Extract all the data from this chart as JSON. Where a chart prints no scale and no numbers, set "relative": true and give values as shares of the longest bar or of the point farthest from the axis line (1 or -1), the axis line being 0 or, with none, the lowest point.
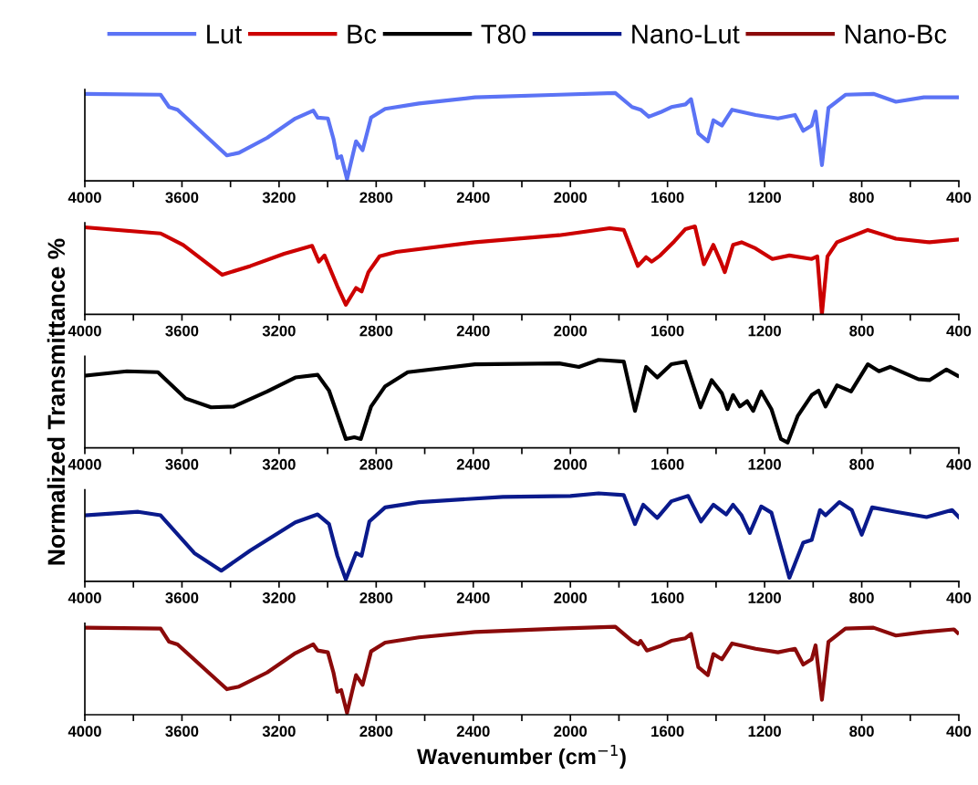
{
  "chart_data": [
    {
      "type": "line",
      "relative": true,
      "legend": "top",
      "tick_labels": "x",
      "xlim": [
        4000,
        400
      ],
      "xticks": [
        4000,
        {
          "value": 3800,
          "label": null
        },
        3600,
        {
          "value": 3400,
          "label": null
        },
        3200,
        {
          "value": 3000,
          "label": null
        },
        2800,
        {
          "value": 2600,
          "label": null
        },
        2400,
        {
          "value": 2200,
          "label": null
        },
        2000,
        {
          "value": 1800,
          "label": null
        },
        1600,
        {
          "value": 1400,
          "label": null
        },
        1200,
        {
          "value": 1000,
          "label": null
        },
        800,
        {
          "value": 600,
          "label": null
        },
        400
      ],
      "series": [
        {
          "name": "Lut",
          "color": "#5b73f5",
          "x": [
            4000,
            3688,
            3653,
            3618,
            3415,
            3365,
            3249,
            3133,
            3059,
            3041,
            2999,
            2976,
            2960,
            2944,
            2920,
            2883,
            2856,
            2821,
            2763,
            2624,
            2393,
            2046,
            1815,
            1746,
            1711,
            1677,
            1630,
            1584,
            1526,
            1503,
            1473,
            1434,
            1411,
            1376,
            1334,
            1237,
            1145,
            1075,
            1041,
            1006,
            990,
            964,
            937,
            867,
            752,
            659,
            544,
            405
          ],
          "values": [
            0.99,
            0.98,
            0.84,
            0.81,
            0.29,
            0.32,
            0.49,
            0.71,
            0.8,
            0.72,
            0.71,
            0.48,
            0.26,
            0.28,
            0.02,
            0.45,
            0.35,
            0.72,
            0.82,
            0.88,
            0.95,
            0.98,
            1.0,
            0.84,
            0.81,
            0.73,
            0.78,
            0.84,
            0.87,
            0.93,
            0.54,
            0.45,
            0.69,
            0.63,
            0.81,
            0.75,
            0.71,
            0.75,
            0.57,
            0.63,
            0.79,
            0.18,
            0.83,
            0.98,
            0.99,
            0.9,
            0.95,
            0.95
          ]
        }
      ]
    },
    {
      "type": "line",
      "relative": true,
      "legend": "top",
      "tick_labels": "x",
      "xlim": [
        4000,
        400
      ],
      "xticks": [
        4000,
        {
          "value": 3800,
          "label": null
        },
        3600,
        {
          "value": 3400,
          "label": null
        },
        3200,
        {
          "value": 3000,
          "label": null
        },
        2800,
        {
          "value": 2600,
          "label": null
        },
        2400,
        {
          "value": 2200,
          "label": null
        },
        2000,
        {
          "value": 1800,
          "label": null
        },
        1600,
        {
          "value": 1400,
          "label": null
        },
        1200,
        {
          "value": 1000,
          "label": null
        },
        800,
        {
          "value": 600,
          "label": null
        },
        400
      ],
      "series": [
        {
          "name": "Bc",
          "color": "#cc0000",
          "x": [
            4000,
            3688,
            3595,
            3434,
            3318,
            3179,
            3064,
            3036,
            3013,
            2960,
            2925,
            2883,
            2860,
            2832,
            2786,
            2717,
            2393,
            2046,
            1838,
            1780,
            1722,
            1688,
            1665,
            1630,
            1572,
            1526,
            1487,
            1450,
            1411,
            1381,
            1364,
            1330,
            1295,
            1237,
            1168,
            1098,
            1006,
            983,
            964,
            941,
            902,
            775,
            659,
            521,
            405
          ],
          "values": [
            0.99,
            0.92,
            0.79,
            0.45,
            0.55,
            0.69,
            0.78,
            0.6,
            0.67,
            0.32,
            0.11,
            0.3,
            0.26,
            0.48,
            0.66,
            0.71,
            0.82,
            0.9,
            0.98,
            0.96,
            0.55,
            0.65,
            0.6,
            0.67,
            0.83,
            0.97,
            1.0,
            0.57,
            0.79,
            0.6,
            0.48,
            0.79,
            0.82,
            0.75,
            0.63,
            0.67,
            0.63,
            0.66,
            0.0,
            0.66,
            0.82,
            0.96,
            0.86,
            0.82,
            0.85
          ]
        }
      ]
    },
    {
      "type": "line",
      "relative": true,
      "legend": "top",
      "tick_labels": "x",
      "ylabel": "Normalized Transmittance %",
      "xlim": [
        4000,
        400
      ],
      "xticks": [
        4000,
        {
          "value": 3800,
          "label": null
        },
        3600,
        {
          "value": 3400,
          "label": null
        },
        3200,
        {
          "value": 3000,
          "label": null
        },
        2800,
        {
          "value": 2600,
          "label": null
        },
        2400,
        {
          "value": 2200,
          "label": null
        },
        2000,
        {
          "value": 1800,
          "label": null
        },
        1600,
        {
          "value": 1400,
          "label": null
        },
        1200,
        {
          "value": 1000,
          "label": null
        },
        800,
        {
          "value": 600,
          "label": null
        },
        400
      ],
      "series": [
        {
          "name": "T80",
          "color": "#000000",
          "x": [
            4000,
            3827,
            3699,
            3584,
            3480,
            3387,
            3249,
            3133,
            3041,
            2994,
            2925,
            2890,
            2863,
            2821,
            2763,
            2670,
            2393,
            2046,
            1965,
            1884,
            1780,
            1734,
            1688,
            1642,
            1584,
            1526,
            1464,
            1418,
            1376,
            1353,
            1330,
            1302,
            1272,
            1247,
            1214,
            1172,
            1133,
            1105,
            1064,
            1006,
            978,
            949,
            902,
            844,
            775,
            729,
            683,
            567,
            521,
            451,
            405
          ],
          "values": [
            0.82,
            0.87,
            0.86,
            0.56,
            0.46,
            0.47,
            0.64,
            0.8,
            0.83,
            0.65,
            0.1,
            0.12,
            0.1,
            0.47,
            0.7,
            0.86,
            0.95,
            0.96,
            0.92,
            1.0,
            0.98,
            0.42,
            0.92,
            0.8,
            0.95,
            0.98,
            0.46,
            0.77,
            0.62,
            0.44,
            0.6,
            0.47,
            0.53,
            0.42,
            0.64,
            0.44,
            0.1,
            0.06,
            0.36,
            0.6,
            0.65,
            0.47,
            0.71,
            0.64,
            0.95,
            0.87,
            0.92,
            0.78,
            0.77,
            0.89,
            0.82
          ]
        }
      ]
    },
    {
      "type": "line",
      "relative": true,
      "legend": "top",
      "tick_labels": "x",
      "xlim": [
        4000,
        400
      ],
      "xticks": [
        4000,
        {
          "value": 3800,
          "label": null
        },
        3600,
        {
          "value": 3400,
          "label": null
        },
        3200,
        {
          "value": 3000,
          "label": null
        },
        2800,
        {
          "value": 2600,
          "label": null
        },
        2400,
        {
          "value": 2200,
          "label": null
        },
        2000,
        {
          "value": 1800,
          "label": null
        },
        1600,
        {
          "value": 1400,
          "label": null
        },
        1200,
        {
          "value": 1000,
          "label": null
        },
        800,
        {
          "value": 600,
          "label": null
        },
        400
      ],
      "series": [
        {
          "name": "Nano-Lut",
          "color": "#0a1a8c",
          "x": [
            4000,
            3780,
            3688,
            3549,
            3438,
            3318,
            3133,
            3041,
            2994,
            2960,
            2925,
            2883,
            2860,
            2828,
            2763,
            2624,
            2278,
            2000,
            1884,
            1780,
            1734,
            1700,
            1642,
            1584,
            1515,
            1462,
            1411,
            1358,
            1330,
            1295,
            1261,
            1214,
            1172,
            1098,
            1041,
            1006,
            972,
            949,
            892,
            841,
            800,
            757,
            659,
            533,
            428,
            400
          ],
          "values": [
            0.75,
            0.79,
            0.75,
            0.32,
            0.12,
            0.35,
            0.67,
            0.76,
            0.65,
            0.29,
            0.02,
            0.32,
            0.29,
            0.68,
            0.84,
            0.9,
            0.96,
            0.97,
            1.0,
            0.98,
            0.65,
            0.87,
            0.72,
            0.91,
            0.97,
            0.68,
            0.87,
            0.76,
            0.87,
            0.75,
            0.55,
            0.85,
            0.78,
            0.04,
            0.44,
            0.47,
            0.81,
            0.75,
            0.9,
            0.81,
            0.53,
            0.84,
            0.79,
            0.73,
            0.81,
            0.73
          ]
        }
      ]
    },
    {
      "type": "line",
      "relative": true,
      "legend": "top",
      "tick_labels": "x",
      "xlabel": "Wavenumber (cm$^{−1}$)",
      "xlim": [
        4000,
        400
      ],
      "xticks": [
        4000,
        {
          "value": 3800,
          "label": null
        },
        3600,
        {
          "value": 3400,
          "label": null
        },
        3200,
        {
          "value": 3000,
          "label": null
        },
        2800,
        {
          "value": 2600,
          "label": null
        },
        2400,
        {
          "value": 2200,
          "label": null
        },
        2000,
        {
          "value": 1800,
          "label": null
        },
        1600,
        {
          "value": 1400,
          "label": null
        },
        1200,
        {
          "value": 1000,
          "label": null
        },
        800,
        {
          "value": 600,
          "label": null
        },
        400
      ],
      "series": [
        {
          "name": "Nano-Bc",
          "color": "#8b0a0a",
          "x": [
            4000,
            3688,
            3653,
            3618,
            3415,
            3365,
            3249,
            3133,
            3059,
            3041,
            2999,
            2976,
            2960,
            2944,
            2920,
            2883,
            2856,
            2821,
            2763,
            2624,
            2393,
            2046,
            1815,
            1746,
            1720,
            1711,
            1685,
            1630,
            1584,
            1526,
            1503,
            1473,
            1434,
            1411,
            1376,
            1334,
            1237,
            1145,
            1075,
            1041,
            1006,
            990,
            964,
            937,
            867,
            752,
            659,
            544,
            420,
            405
          ],
          "values": [
            0.99,
            0.98,
            0.83,
            0.8,
            0.29,
            0.32,
            0.48,
            0.7,
            0.8,
            0.73,
            0.71,
            0.48,
            0.26,
            0.28,
            0.02,
            0.45,
            0.34,
            0.72,
            0.82,
            0.88,
            0.94,
            0.98,
            1.0,
            0.84,
            0.8,
            0.84,
            0.73,
            0.78,
            0.84,
            0.87,
            0.92,
            0.54,
            0.45,
            0.69,
            0.63,
            0.81,
            0.75,
            0.71,
            0.75,
            0.57,
            0.63,
            0.79,
            0.17,
            0.83,
            0.98,
            0.99,
            0.9,
            0.94,
            0.97,
            0.93
          ]
        }
      ]
    }
  ]
}
